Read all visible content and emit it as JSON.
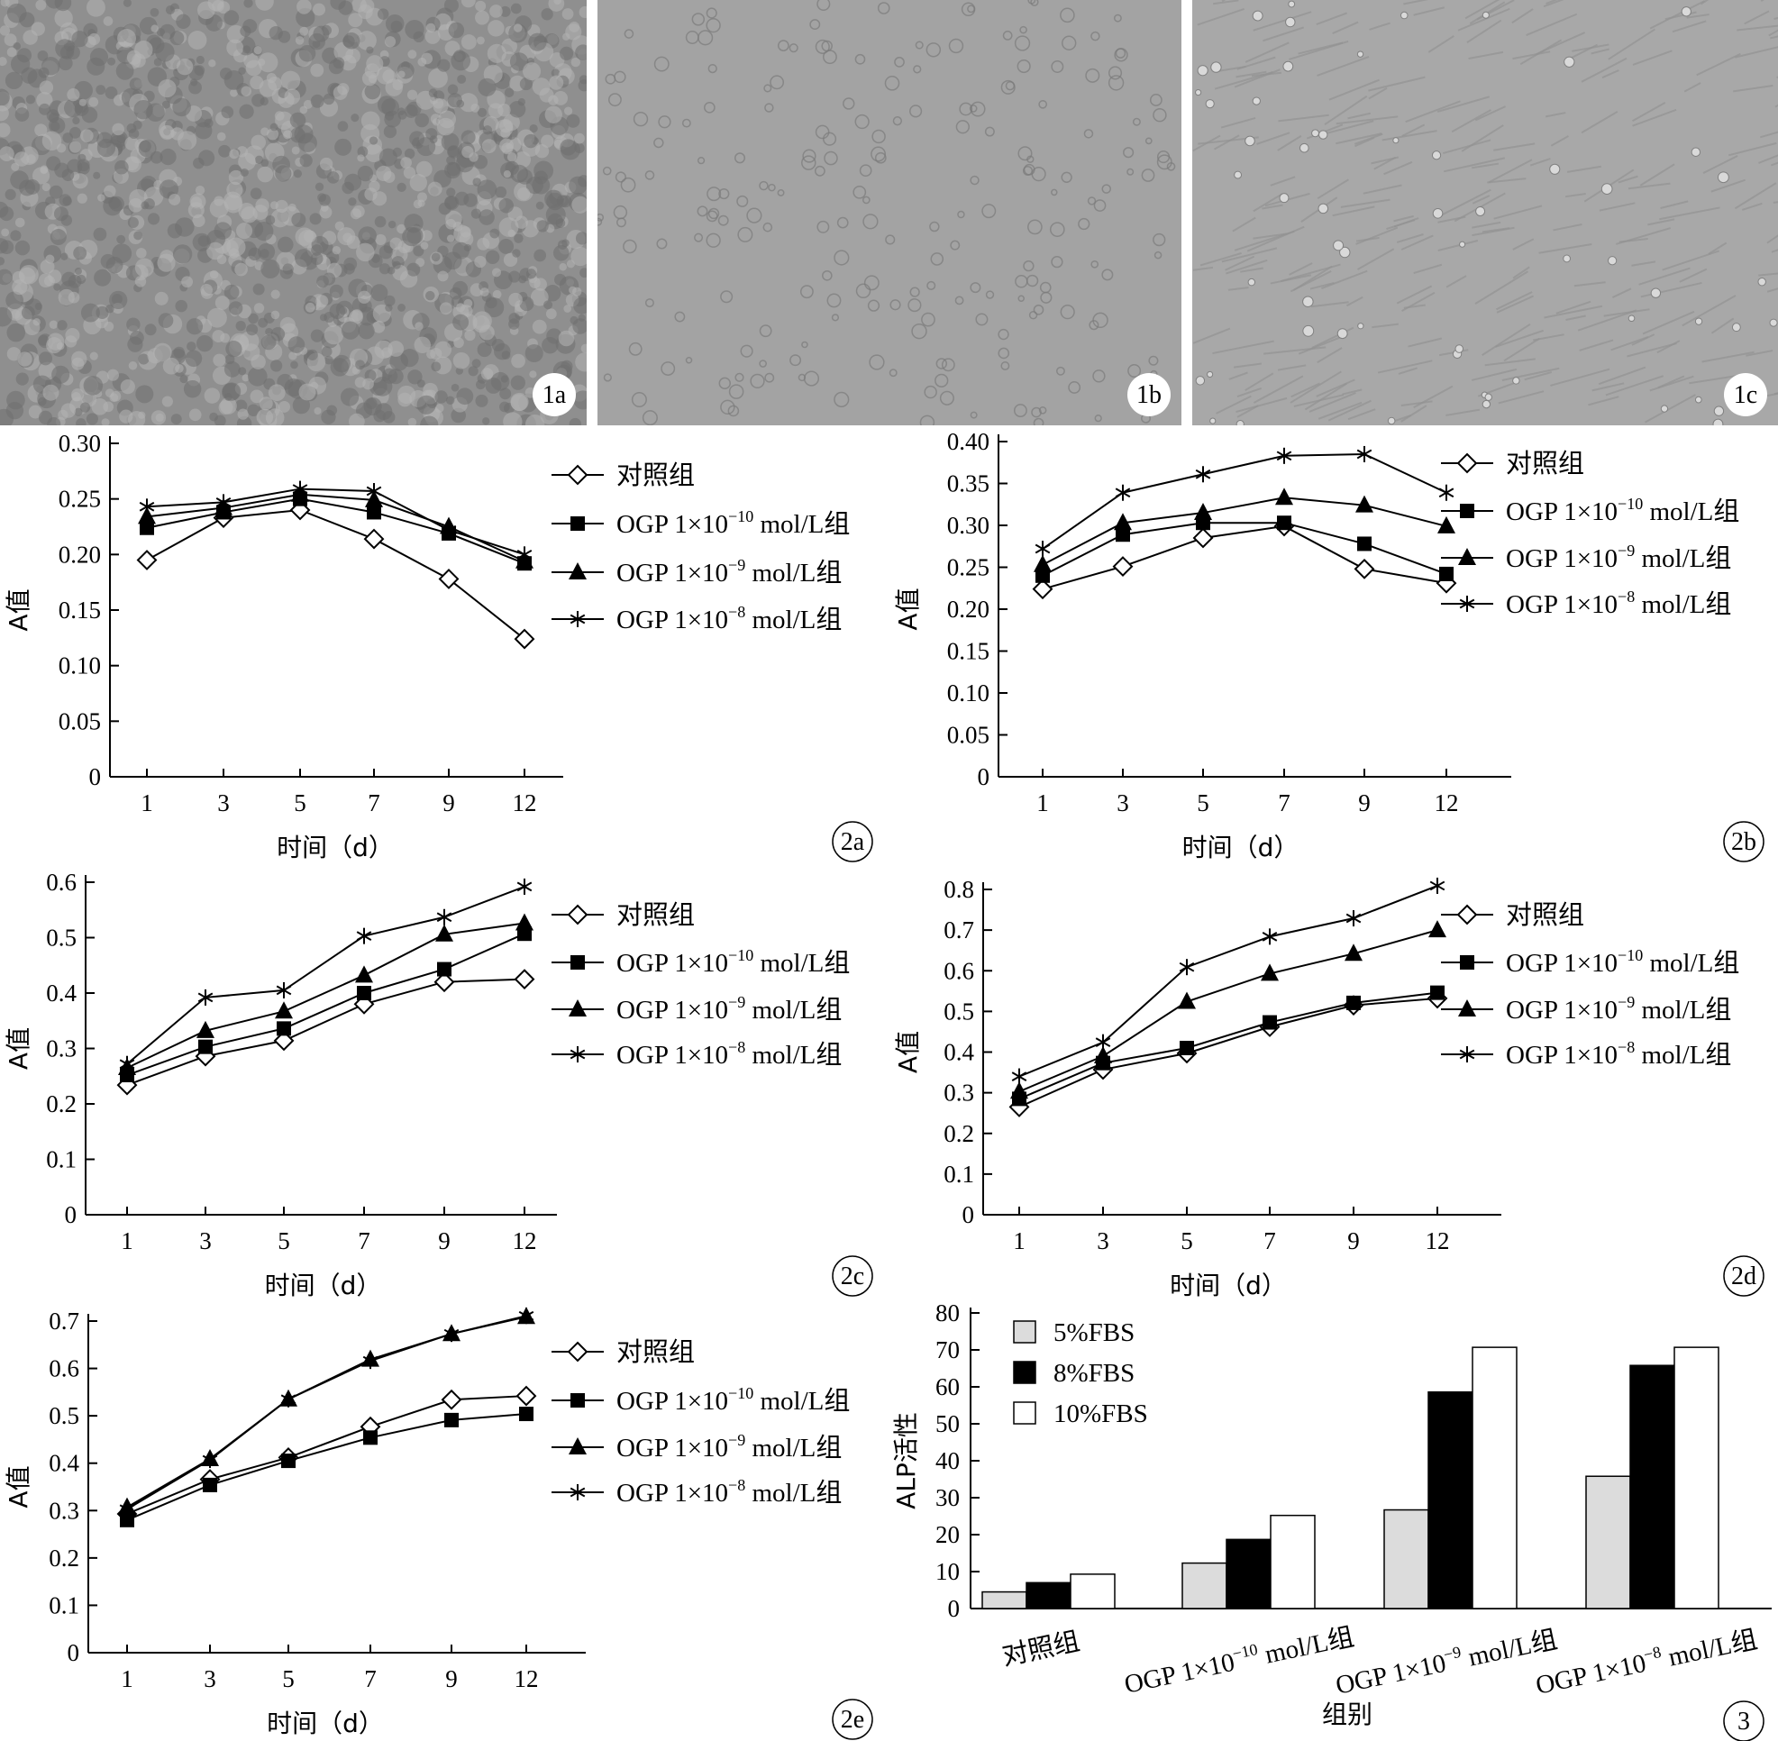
{
  "photos": [
    {
      "label": "1a",
      "tone": "#8f8f8f"
    },
    {
      "label": "1b",
      "tone": "#a3a3a3"
    },
    {
      "label": "1c",
      "tone": "#a8a8a8"
    }
  ],
  "legend_lines": [
    {
      "pre": "对照组",
      "base": "",
      "exp": "",
      "post": ""
    },
    {
      "pre": "OGP 1×10",
      "base": "",
      "exp": "−10",
      "post": " mol/L组"
    },
    {
      "pre": "OGP 1×10",
      "base": "",
      "exp": "−9",
      "post": " mol/L组"
    },
    {
      "pre": "OGP 1×10",
      "base": "",
      "exp": "−8",
      "post": " mol/L组"
    }
  ],
  "chart_data": [
    {
      "id": "2a",
      "type": "line",
      "badge": "2a",
      "categories": [
        "1",
        "3",
        "5",
        "7",
        "9",
        "12"
      ],
      "xlabel": "时间（d）",
      "ylabel": "A值",
      "ylim": [
        0,
        0.3
      ],
      "yticks": [
        "0",
        "0.05",
        "0.10",
        "0.15",
        "0.20",
        "0.25",
        "0.30"
      ],
      "series": [
        {
          "name": "对照组",
          "marker": "diamond",
          "values": [
            0.195,
            0.233,
            0.24,
            0.214,
            0.178,
            0.124
          ]
        },
        {
          "name": "OGP 1×10−10 mol/L组",
          "marker": "square",
          "values": [
            0.224,
            0.238,
            0.25,
            0.238,
            0.219,
            0.192
          ]
        },
        {
          "name": "OGP 1×10−9 mol/L组",
          "marker": "triangle",
          "values": [
            0.234,
            0.242,
            0.254,
            0.249,
            0.225,
            0.194
          ]
        },
        {
          "name": "OGP 1×10−8 mol/L组",
          "marker": "star",
          "values": [
            0.243,
            0.247,
            0.259,
            0.257,
            0.222,
            0.2
          ]
        }
      ]
    },
    {
      "id": "2b",
      "type": "line",
      "badge": "2b",
      "categories": [
        "1",
        "3",
        "5",
        "7",
        "9",
        "12"
      ],
      "xlabel": "时间（d）",
      "ylabel": "A值",
      "ylim": [
        0,
        0.4
      ],
      "yticks": [
        "0",
        "0.05",
        "0.10",
        "0.15",
        "0.20",
        "0.25",
        "0.30",
        "0.35",
        "0.40"
      ],
      "series": [
        {
          "name": "对照组",
          "marker": "diamond",
          "values": [
            0.224,
            0.251,
            0.285,
            0.299,
            0.248,
            0.231
          ]
        },
        {
          "name": "OGP 1×10−10 mol/L组",
          "marker": "square",
          "values": [
            0.24,
            0.289,
            0.303,
            0.303,
            0.278,
            0.242
          ]
        },
        {
          "name": "OGP 1×10−9 mol/L组",
          "marker": "triangle",
          "values": [
            0.253,
            0.303,
            0.315,
            0.333,
            0.324,
            0.299
          ]
        },
        {
          "name": "OGP 1×10−8 mol/L组",
          "marker": "star",
          "values": [
            0.272,
            0.339,
            0.361,
            0.383,
            0.385,
            0.339
          ]
        }
      ]
    },
    {
      "id": "2c",
      "type": "line",
      "badge": "2c",
      "categories": [
        "1",
        "3",
        "5",
        "7",
        "9",
        "12"
      ],
      "xlabel": "时间（d）",
      "ylabel": "A值",
      "ylim": [
        0,
        0.6
      ],
      "yticks": [
        "0",
        "0.1",
        "0.2",
        "0.3",
        "0.4",
        "0.5",
        "0.6"
      ],
      "series": [
        {
          "name": "对照组",
          "marker": "diamond",
          "values": [
            0.234,
            0.286,
            0.314,
            0.38,
            0.42,
            0.425
          ]
        },
        {
          "name": "OGP 1×10−10 mol/L组",
          "marker": "square",
          "values": [
            0.252,
            0.303,
            0.336,
            0.4,
            0.443,
            0.507
          ]
        },
        {
          "name": "OGP 1×10−9 mol/L组",
          "marker": "triangle",
          "values": [
            0.265,
            0.332,
            0.367,
            0.432,
            0.506,
            0.526
          ]
        },
        {
          "name": "OGP 1×10−8 mol/L组",
          "marker": "star",
          "values": [
            0.272,
            0.392,
            0.405,
            0.503,
            0.537,
            0.592
          ]
        }
      ]
    },
    {
      "id": "2d",
      "type": "line",
      "badge": "2d",
      "categories": [
        "1",
        "3",
        "5",
        "7",
        "9",
        "12"
      ],
      "xlabel": "时间（d）",
      "ylabel": "A值",
      "ylim": [
        0,
        0.8
      ],
      "yticks": [
        "0",
        "0.1",
        "0.2",
        "0.3",
        "0.4",
        "0.5",
        "0.6",
        "0.7",
        "0.8"
      ],
      "series": [
        {
          "name": "对照组",
          "marker": "diamond",
          "values": [
            0.265,
            0.357,
            0.397,
            0.462,
            0.515,
            0.532
          ]
        },
        {
          "name": "OGP 1×10−10 mol/L组",
          "marker": "square",
          "values": [
            0.285,
            0.373,
            0.41,
            0.473,
            0.521,
            0.546
          ]
        },
        {
          "name": "OGP 1×10−9 mol/L组",
          "marker": "triangle",
          "values": [
            0.303,
            0.39,
            0.524,
            0.593,
            0.642,
            0.7
          ]
        },
        {
          "name": "OGP 1×10−8 mol/L组",
          "marker": "star",
          "values": [
            0.34,
            0.424,
            0.609,
            0.684,
            0.729,
            0.809
          ]
        }
      ]
    },
    {
      "id": "2e",
      "type": "line",
      "badge": "2e",
      "categories": [
        "1",
        "3",
        "5",
        "7",
        "9",
        "12"
      ],
      "xlabel": "时间（d）",
      "ylabel": "A值",
      "ylim": [
        0,
        0.7
      ],
      "yticks": [
        "0",
        "0.1",
        "0.2",
        "0.3",
        "0.4",
        "0.5",
        "0.6",
        "0.7"
      ],
      "series": [
        {
          "name": "对照组",
          "marker": "diamond",
          "values": [
            0.293,
            0.366,
            0.412,
            0.477,
            0.534,
            0.542
          ]
        },
        {
          "name": "OGP 1×10−10 mol/L组",
          "marker": "square",
          "values": [
            0.28,
            0.354,
            0.405,
            0.454,
            0.491,
            0.504
          ]
        },
        {
          "name": "OGP 1×10−9 mol/L组",
          "marker": "triangle",
          "values": [
            0.307,
            0.409,
            0.535,
            0.619,
            0.673,
            0.709
          ]
        },
        {
          "name": "OGP 1×10−8 mol/L组",
          "marker": "star",
          "values": [
            0.303,
            0.407,
            0.535,
            0.616,
            0.673,
            0.711
          ]
        }
      ]
    },
    {
      "id": "3",
      "type": "bar",
      "badge": "3",
      "categories": [
        "对照组",
        "OGP 1×10−10 mol/L组",
        "OGP 1×10−9 mol/L组",
        "OGP 1×10−8 mol/L组"
      ],
      "category_parts": [
        {
          "pre": "对照组",
          "exp": "",
          "post": ""
        },
        {
          "pre": "OGP 1×10",
          "exp": "−10",
          "post": " mol/L组"
        },
        {
          "pre": "OGP 1×10",
          "exp": "−9",
          "post": " mol/L组"
        },
        {
          "pre": "OGP 1×10",
          "exp": "−8",
          "post": " mol/L组"
        }
      ],
      "xlabel": "组别",
      "ylabel": "ALP活性",
      "ylim": [
        0,
        80
      ],
      "yticks": [
        "0",
        "10",
        "20",
        "30",
        "40",
        "50",
        "60",
        "70",
        "80"
      ],
      "series": [
        {
          "name": "5%FBS",
          "color": "#dcdcdc",
          "values": [
            4.5,
            12.3,
            26.7,
            35.8
          ]
        },
        {
          "name": "8%FBS",
          "color": "#000000",
          "values": [
            7.0,
            18.7,
            58.6,
            65.8
          ]
        },
        {
          "name": "10%FBS",
          "color": "#ffffff",
          "values": [
            9.3,
            25.2,
            70.7,
            70.7
          ]
        }
      ]
    }
  ]
}
